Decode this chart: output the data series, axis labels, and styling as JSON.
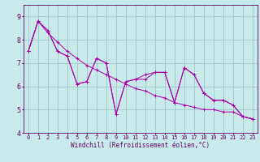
{
  "xlabel": "Windchill (Refroidissement éolien,°C)",
  "background_color": "#c8eaea",
  "grid_color": "#a0c8c8",
  "spine_color": "#660066",
  "line_color": "#aa00aa",
  "xmin": -0.5,
  "xmax": 23.5,
  "ymin": 4.0,
  "ymax": 9.5,
  "hours": [
    0,
    1,
    2,
    3,
    4,
    5,
    6,
    7,
    8,
    9,
    10,
    11,
    12,
    13,
    14,
    15,
    16,
    17,
    18,
    19,
    20,
    21,
    22,
    23
  ],
  "line1": [
    7.5,
    8.8,
    8.4,
    7.5,
    7.3,
    6.1,
    6.2,
    7.2,
    7.0,
    4.8,
    6.2,
    6.3,
    6.3,
    6.6,
    6.6,
    5.3,
    6.8,
    6.5,
    5.7,
    5.4,
    5.4,
    5.2,
    4.7,
    4.6
  ],
  "line2": [
    7.5,
    8.8,
    8.4,
    7.5,
    7.3,
    6.1,
    6.2,
    7.2,
    7.0,
    4.8,
    6.2,
    6.3,
    6.5,
    6.6,
    6.6,
    5.3,
    6.8,
    6.5,
    5.7,
    5.4,
    5.4,
    5.2,
    4.7,
    4.6
  ],
  "line3_smooth": [
    7.5,
    8.8,
    8.3,
    7.9,
    7.5,
    7.2,
    6.9,
    6.7,
    6.5,
    6.3,
    6.1,
    5.9,
    5.8,
    5.6,
    5.5,
    5.3,
    5.2,
    5.1,
    5.0,
    5.0,
    4.9,
    4.9,
    4.7,
    4.6
  ],
  "yticks": [
    4,
    5,
    6,
    7,
    8,
    9
  ],
  "xticks": [
    0,
    1,
    2,
    3,
    4,
    5,
    6,
    7,
    8,
    9,
    10,
    11,
    12,
    13,
    14,
    15,
    16,
    17,
    18,
    19,
    20,
    21,
    22,
    23
  ],
  "tick_fontsize": 5,
  "xlabel_fontsize": 5.5,
  "ytick_fontsize": 6
}
